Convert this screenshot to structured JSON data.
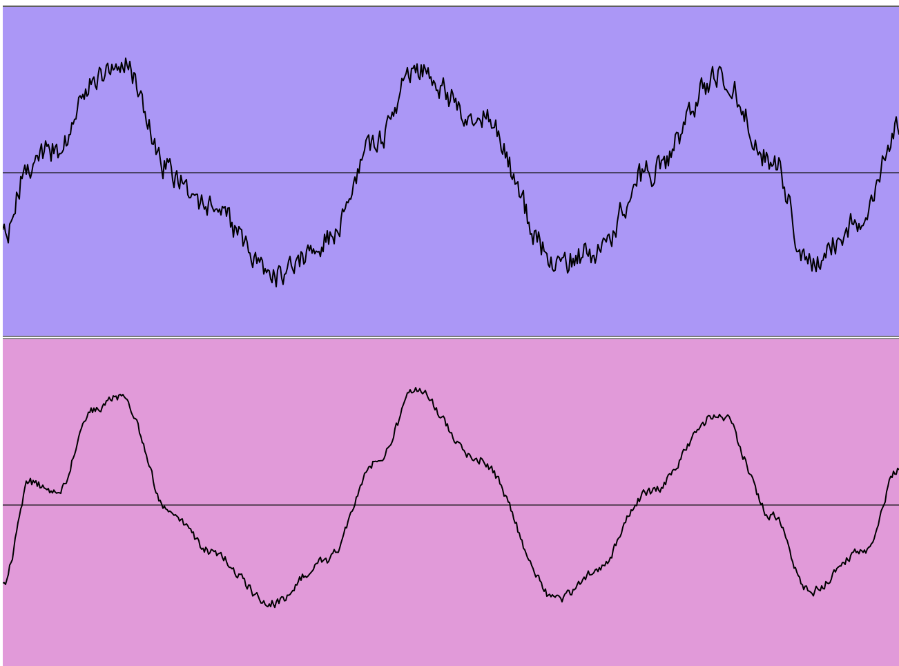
{
  "tracks": [
    {
      "id": "track-1",
      "background": "#ab97f6",
      "waveform_color": "#000000",
      "baseline_color": "#111111",
      "noise": "high"
    },
    {
      "id": "track-2",
      "background": "#e19ad9",
      "waveform_color": "#000000",
      "baseline_color": "#111111",
      "noise": "low"
    }
  ],
  "chart_data": [
    {
      "type": "line",
      "series": [
        {
          "x": [
            0,
            0.03,
            0.06,
            0.1,
            0.13,
            0.19,
            0.23,
            0.3,
            0.36,
            0.42,
            0.46,
            0.53,
            0.62,
            0.66,
            0.72,
            0.8,
            0.86,
            0.9,
            0.96,
            1.0
          ],
          "values": [
            -0.3,
            0.05,
            0.1,
            0.4,
            0.5,
            0.0,
            -0.15,
            -0.45,
            -0.3,
            0.15,
            0.45,
            0.25,
            -0.4,
            -0.35,
            0.0,
            0.42,
            0.05,
            -0.4,
            -0.2,
            0.2
          ]
        }
      ],
      "ylim": [
        -1,
        1
      ]
    },
    {
      "type": "line",
      "series": [
        {
          "x": [
            0,
            0.03,
            0.06,
            0.1,
            0.13,
            0.19,
            0.23,
            0.3,
            0.36,
            0.42,
            0.46,
            0.53,
            0.62,
            0.66,
            0.72,
            0.8,
            0.86,
            0.9,
            0.96,
            1.0
          ],
          "values": [
            -0.35,
            0.1,
            0.05,
            0.42,
            0.48,
            -0.05,
            -0.2,
            -0.43,
            -0.25,
            0.2,
            0.5,
            0.2,
            -0.42,
            -0.3,
            0.05,
            0.4,
            -0.05,
            -0.38,
            -0.2,
            0.15
          ]
        }
      ],
      "ylim": [
        -1,
        1
      ]
    }
  ]
}
